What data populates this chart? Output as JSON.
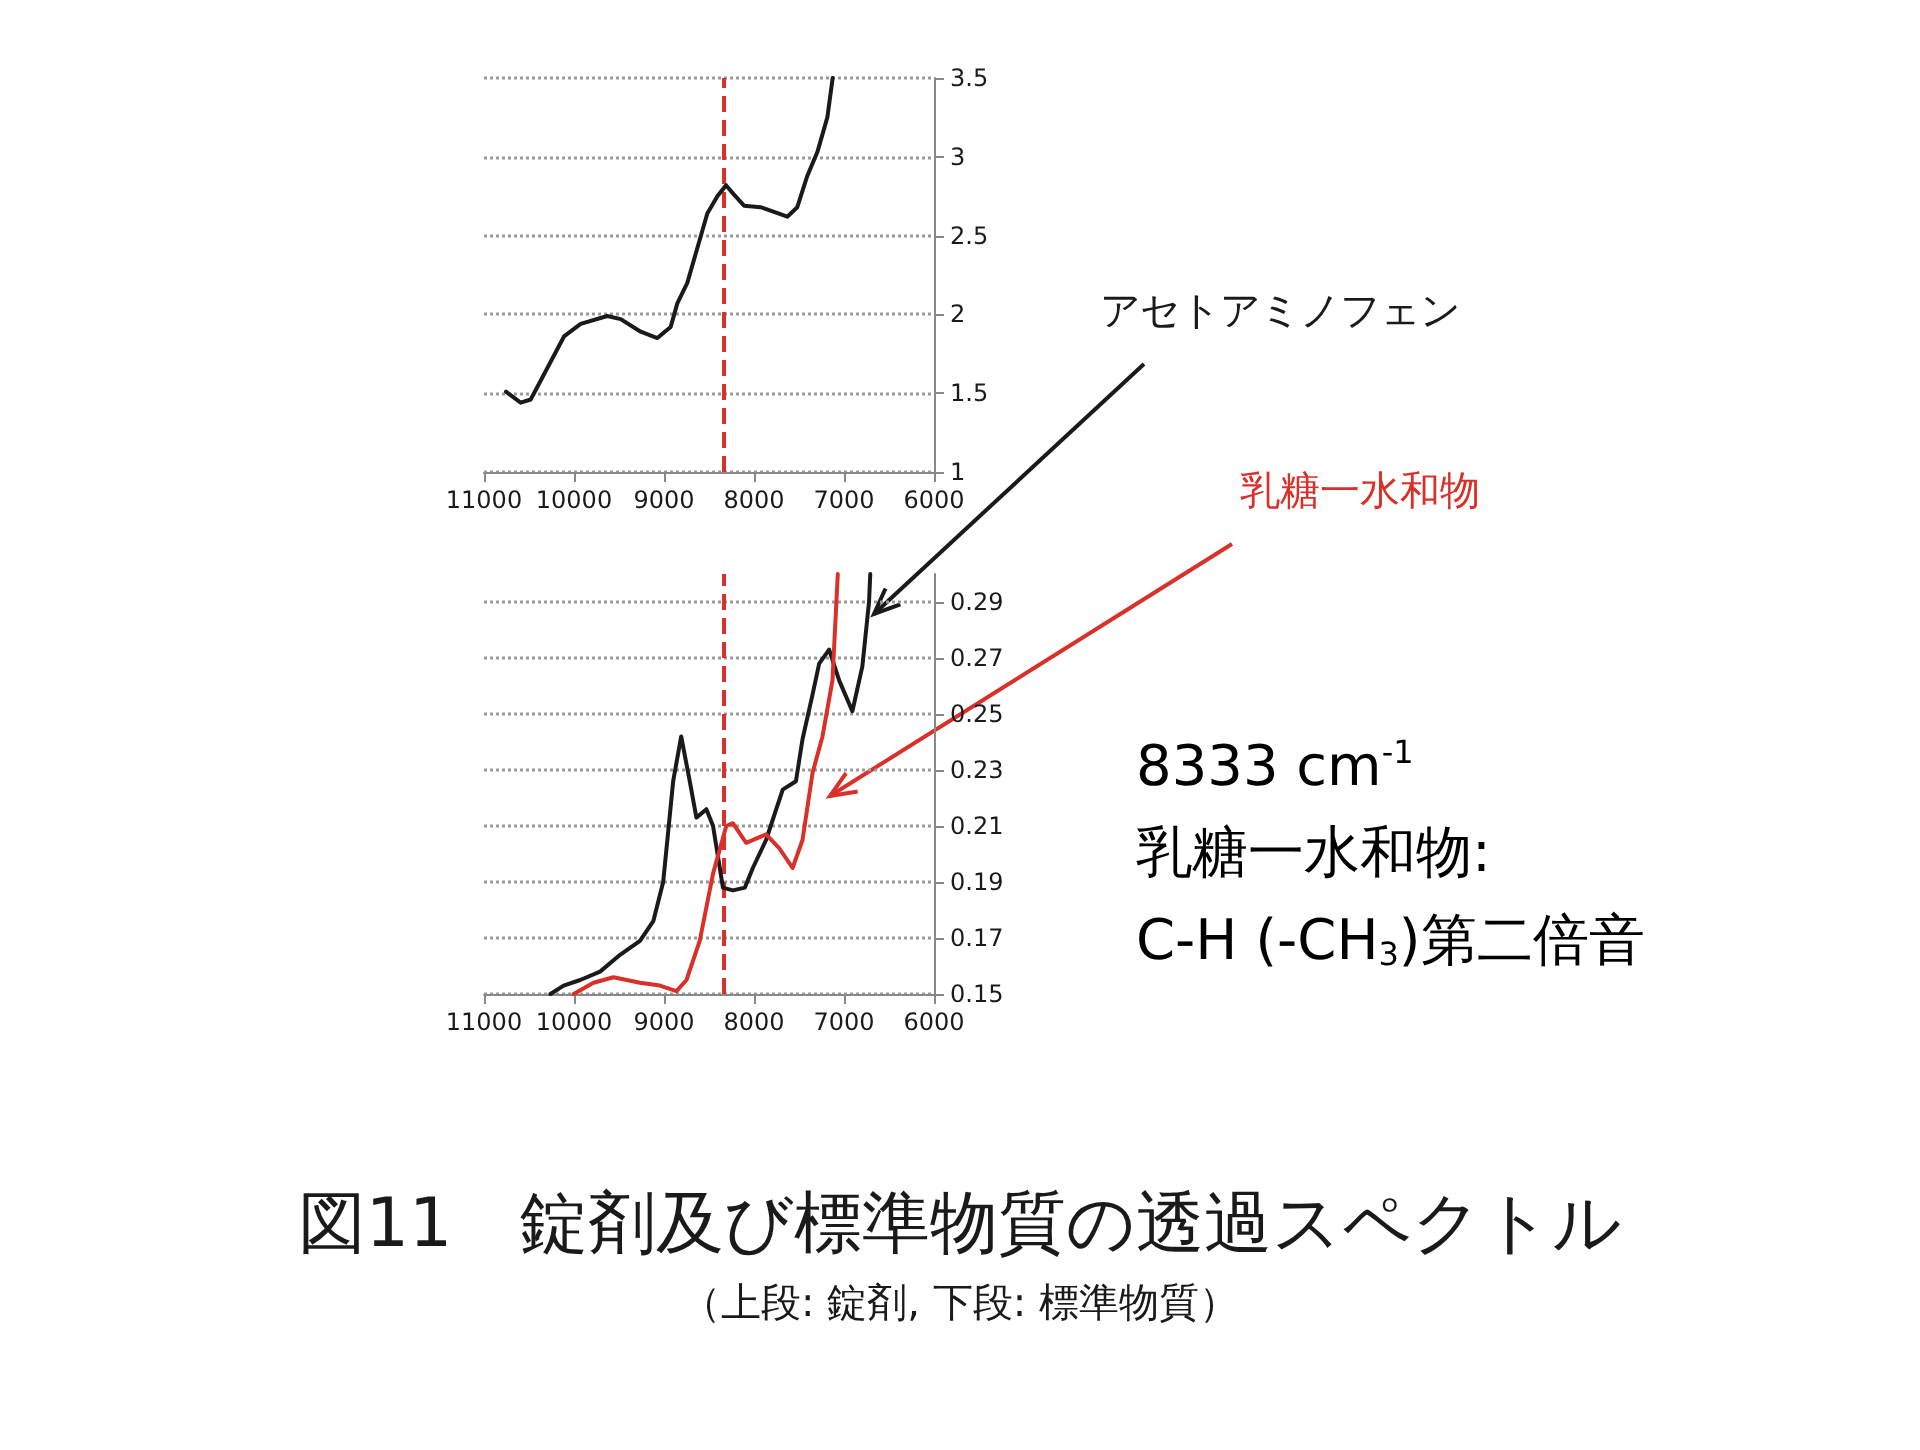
{
  "chart_data": [
    {
      "type": "line",
      "xlim": [
        11000,
        6000
      ],
      "xticks": [
        11000,
        10000,
        9000,
        8000,
        7000,
        6000
      ],
      "ylim": [
        1,
        3.5
      ],
      "yticks": [
        1,
        1.5,
        2,
        2.5,
        3,
        3.5
      ],
      "grid": "y",
      "legend": false,
      "marker": "none",
      "line_style": "solid",
      "ref_lines": [
        {
          "axis": "x",
          "value": 8333,
          "color": "#d9302a",
          "line_style": "dashed"
        }
      ],
      "series": [
        {
          "color": "#1a1a1a",
          "x": [
            10756,
            10593,
            10481,
            10296,
            10111,
            9926,
            9630,
            9481,
            9259,
            9074,
            8926,
            8852,
            8741,
            8630,
            8519,
            8407,
            8311,
            8222,
            8111,
            7926,
            7778,
            7630,
            7519,
            7407,
            7296,
            7185,
            7126
          ],
          "values": [
            1.51,
            1.44,
            1.46,
            1.66,
            1.86,
            1.94,
            1.99,
            1.97,
            1.89,
            1.85,
            1.92,
            2.07,
            2.2,
            2.42,
            2.64,
            2.75,
            2.82,
            2.76,
            2.69,
            2.68,
            2.65,
            2.62,
            2.68,
            2.88,
            3.03,
            3.25,
            3.5
          ]
        }
      ]
    },
    {
      "type": "line",
      "title": "図11　錠剤及び標準物質の透過スペクトル",
      "subtitle": "（上段: 錠剤, 下段: 標準物質）",
      "xlim": [
        11000,
        6000
      ],
      "xticks": [
        11000,
        10000,
        9000,
        8000,
        7000,
        6000
      ],
      "ylim": [
        0.15,
        0.3
      ],
      "yticks": [
        0.15,
        0.17,
        0.19,
        0.21,
        0.23,
        0.25,
        0.27,
        0.29
      ],
      "grid": "y",
      "legend": false,
      "marker": "none",
      "line_style": "solid",
      "ref_lines": [
        {
          "axis": "x",
          "value": 8333,
          "color": "#d9302a",
          "line_style": "dashed"
        }
      ],
      "annotations": [
        "8333 cm$^{-1}$",
        "乳糖一水和物:",
        "C-H (-CH$_{3}$)第二倍音"
      ],
      "series": [
        {
          "name": "アセトアミノフェン",
          "color": "#1a1a1a",
          "x": [
            10262,
            10115,
            9931,
            9710,
            9488,
            9267,
            9119,
            9009,
            8898,
            8809,
            8714,
            8640,
            8529,
            8455,
            8345,
            8235,
            8101,
            8013,
            7866,
            7681,
            7534,
            7461,
            7349,
            7276,
            7165,
            7054,
            6907,
            6796,
            6722,
            6708
          ],
          "values": [
            0.15,
            0.153,
            0.155,
            0.158,
            0.164,
            0.169,
            0.176,
            0.19,
            0.226,
            0.242,
            0.226,
            0.213,
            0.216,
            0.21,
            0.188,
            0.187,
            0.188,
            0.195,
            0.205,
            0.223,
            0.226,
            0.241,
            0.257,
            0.268,
            0.273,
            0.262,
            0.251,
            0.267,
            0.29,
            0.3
          ]
        },
        {
          "name": "乳糖一水和物",
          "color": "#d9302a",
          "x": [
            10004,
            9783,
            9562,
            9267,
            9046,
            8861,
            8750,
            8603,
            8455,
            8308,
            8235,
            8087,
            7866,
            7718,
            7571,
            7461,
            7349,
            7239,
            7128,
            7069
          ],
          "values": [
            0.15,
            0.154,
            0.156,
            0.154,
            0.153,
            0.151,
            0.155,
            0.169,
            0.193,
            0.21,
            0.211,
            0.204,
            0.207,
            0.202,
            0.195,
            0.205,
            0.229,
            0.242,
            0.262,
            0.3
          ]
        }
      ]
    }
  ]
}
